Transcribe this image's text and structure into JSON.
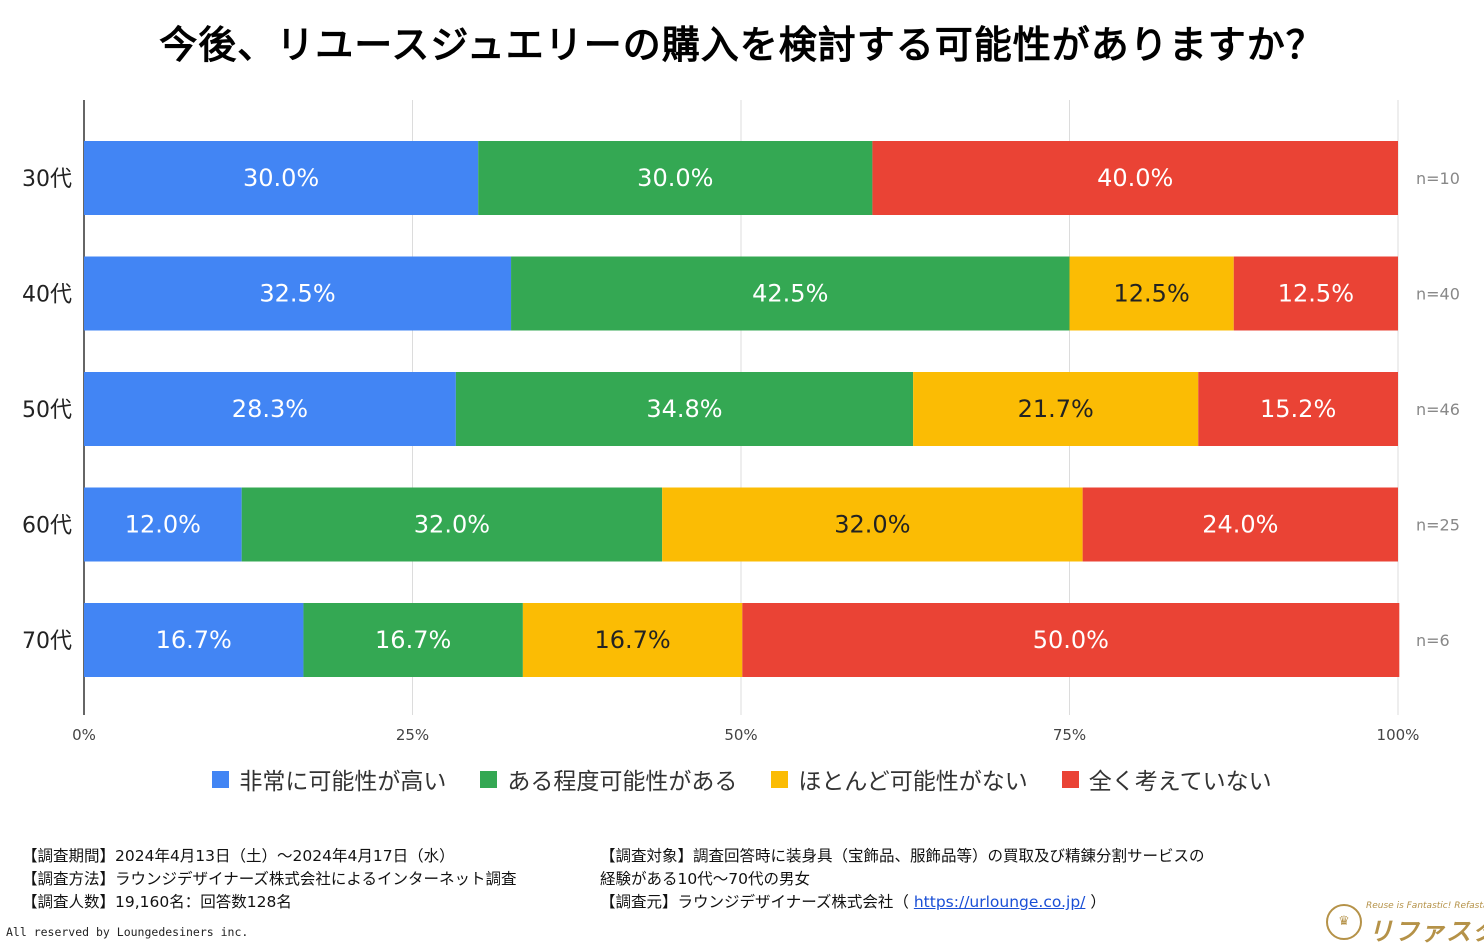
{
  "title": "今後、リユースジュエリーの購入を検討する可能性がありますか？",
  "chart_data": {
    "type": "bar",
    "orientation": "horizontal",
    "stacked": true,
    "xlim": [
      0,
      100
    ],
    "x_ticks": [
      "0%",
      "25%",
      "50%",
      "75%",
      "100%"
    ],
    "x_tick_values": [
      0,
      25,
      50,
      75,
      100
    ],
    "categories": [
      "30代",
      "40代",
      "50代",
      "60代",
      "70代"
    ],
    "sample_sizes": [
      "n=10",
      "n=40",
      "n=46",
      "n=25",
      "n=6"
    ],
    "series": [
      {
        "name": "非常に可能性が高い",
        "color": "#4285f4",
        "label_color": "#ffffff",
        "values": [
          30.0,
          32.5,
          28.3,
          12.0,
          16.7
        ],
        "labels": [
          "30.0%",
          "32.5%",
          "28.3%",
          "12.0%",
          "16.7%"
        ]
      },
      {
        "name": "ある程度可能性がある",
        "color": "#34a853",
        "label_color": "#ffffff",
        "values": [
          30.0,
          42.5,
          34.8,
          32.0,
          16.7
        ],
        "labels": [
          "30.0%",
          "42.5%",
          "34.8%",
          "32.0%",
          "16.7%"
        ]
      },
      {
        "name": "ほとんど可能性がない",
        "color": "#fbbc04",
        "label_color": "#222222",
        "values": [
          0,
          12.5,
          21.7,
          32.0,
          16.7
        ],
        "labels": [
          "",
          "12.5%",
          "21.7%",
          "32.0%",
          "16.7%"
        ]
      },
      {
        "name": "全く考えていない",
        "color": "#ea4335",
        "label_color": "#ffffff",
        "values": [
          40.0,
          12.5,
          15.2,
          24.0,
          50.0
        ],
        "labels": [
          "40.0%",
          "12.5%",
          "15.2%",
          "24.0%",
          "50.0%"
        ]
      }
    ],
    "legend_position": "bottom",
    "grid": true
  },
  "notes": {
    "left": [
      "【調査期間】2024年4月13日（土）～2024年4月17日（水）",
      "【調査方法】ラウンジデザイナーズ株式会社によるインターネット調査",
      "【調査人数】19,160名：回答数128名"
    ],
    "right_line1": "【調査対象】調査回答時に装身具（宝飾品、服飾品等）の買取及び精錬分割サービスの",
    "right_line2": "経験がある10代～70代の男女",
    "source_prefix": "【調査元】ラウンジデザイナーズ株式会社（",
    "source_url": "https://urlounge.co.jp/",
    "source_suffix": "）"
  },
  "copyright": "All reserved by Loungedesiners inc.",
  "logo": {
    "tagline": "Reuse is Fantastic! Refasta",
    "name": "リファスタ",
    "brand_color": "#b59248"
  }
}
